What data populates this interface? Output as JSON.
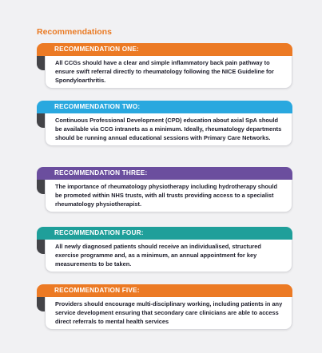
{
  "page": {
    "heading": "Recommendations"
  },
  "recommendations": [
    {
      "title": "RECOMMENDATION ONE:",
      "color": "#ec7a24",
      "text": "All CCGs should have a clear and simple inflammatory back pain pathway to ensure swift referral directly to rheumatology following the NICE Guideline for Spondyloarthritis."
    },
    {
      "title": "RECOMMENDATION TWO:",
      "color": "#29a8df",
      "text": "Continuous Professional Development (CPD) education about axial SpA should be available via CCG intranets as a minimum. Ideally, rheumatology departments should be running annual educational sessions with Primary Care Networks."
    },
    {
      "title": "RECOMMENDATION THREE:",
      "color": "#6b4e9e",
      "text": "The importance of rheumatology physiotherapy including hydrotherapy should be promoted within NHS trusts, with all trusts providing access to a specialist rheumatology physiotherapist."
    },
    {
      "title": "RECOMMENDATION FOUR:",
      "color": "#1f9f9a",
      "text": "All newly diagnosed patients should receive an individualised, structured exercise programme and, as a minimum, an annual appointment for key measurements to be taken."
    },
    {
      "title": "RECOMMENDATION FIVE:",
      "color": "#ec7a24",
      "text": "Providers should encourage multi-disciplinary working, including patients in any service development ensuring that secondary care clinicians are able to access direct referrals to mental health services"
    }
  ]
}
